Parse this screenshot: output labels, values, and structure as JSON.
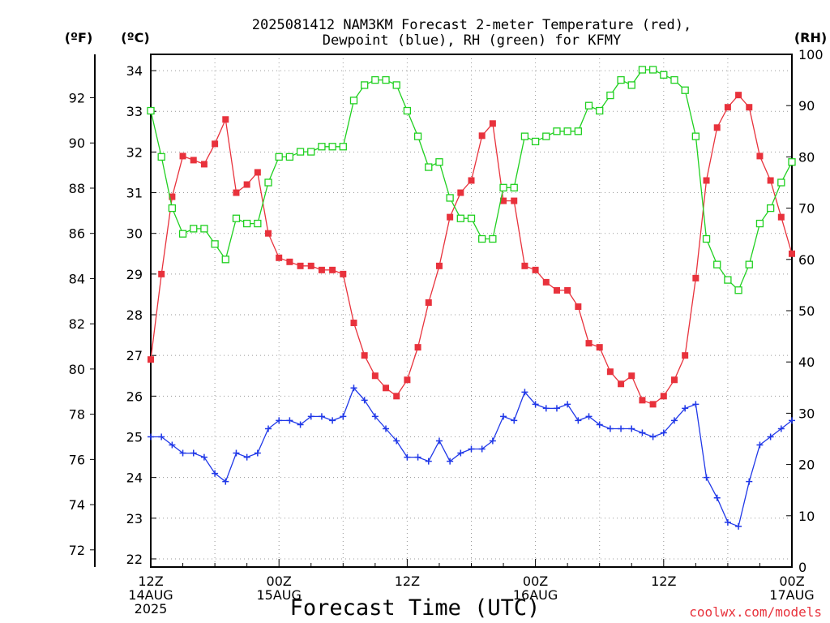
{
  "chart_data": {
    "type": "line",
    "title_line1": "2025081412 NAM3KM Forecast 2-meter Temperature (red),",
    "title_line2": "Dewpoint (blue), RH (green) for KFMY",
    "xlabel": "Forecast Time (UTC)",
    "credit": "coolwx.com/models",
    "left_unit_f": "(ºF)",
    "left_unit_c": "(ºC)",
    "right_unit": "(RH)",
    "xlim_hours": [
      0,
      60
    ],
    "ylim_c": [
      21.8,
      34.4
    ],
    "ylim_rh": [
      0,
      100
    ],
    "grid": true,
    "x_ticks": [
      {
        "hour": 0,
        "line1": "12Z",
        "line2": "14AUG",
        "line3": "2025"
      },
      {
        "hour": 12,
        "line1": "00Z",
        "line2": "15AUG",
        "line3": ""
      },
      {
        "hour": 24,
        "line1": "12Z",
        "line2": "",
        "line3": ""
      },
      {
        "hour": 36,
        "line1": "00Z",
        "line2": "16AUG",
        "line3": ""
      },
      {
        "hour": 48,
        "line1": "12Z",
        "line2": "",
        "line3": ""
      },
      {
        "hour": 60,
        "line1": "00Z",
        "line2": "17AUG",
        "line3": ""
      }
    ],
    "c_ticks": [
      "22",
      "23",
      "24",
      "25",
      "26",
      "27",
      "28",
      "29",
      "30",
      "31",
      "32",
      "33",
      "34"
    ],
    "f_ticks": [
      "72",
      "74",
      "76",
      "78",
      "80",
      "82",
      "84",
      "86",
      "88",
      "90",
      "92"
    ],
    "rh_ticks": [
      "0",
      "10",
      "20",
      "30",
      "40",
      "50",
      "60",
      "70",
      "80",
      "90",
      "100"
    ],
    "hours": [
      0,
      1,
      2,
      3,
      4,
      5,
      6,
      7,
      8,
      9,
      10,
      11,
      12,
      13,
      14,
      15,
      16,
      17,
      18,
      19,
      20,
      21,
      22,
      23,
      24,
      25,
      26,
      27,
      28,
      29,
      30,
      31,
      32,
      33,
      34,
      35,
      36,
      37,
      38,
      39,
      40,
      41,
      42,
      43,
      44,
      45,
      46,
      47,
      48,
      49,
      50,
      51,
      52,
      53,
      54,
      55,
      56,
      57,
      58,
      59,
      60
    ],
    "series": [
      {
        "name": "Temperature",
        "unit": "°C",
        "color": "#e8323c",
        "marker": "filled-square",
        "values": [
          26.9,
          29.0,
          30.9,
          31.9,
          31.8,
          31.7,
          32.2,
          32.8,
          31.0,
          31.2,
          31.5,
          30.0,
          29.4,
          29.3,
          29.2,
          29.2,
          29.1,
          29.1,
          29.0,
          27.8,
          27.0,
          26.5,
          26.2,
          26.0,
          26.4,
          27.2,
          28.3,
          29.2,
          30.4,
          31.0,
          31.3,
          32.4,
          32.7,
          30.8,
          30.8,
          29.2,
          29.1,
          28.8,
          28.6,
          28.6,
          28.2,
          27.3,
          27.2,
          26.6,
          26.3,
          26.5,
          25.9,
          25.8,
          26.0,
          26.4,
          27.0,
          28.9,
          31.3,
          32.6,
          33.1,
          33.4,
          33.1,
          31.9,
          31.3,
          30.4,
          29.5
        ]
      },
      {
        "name": "Dewpoint",
        "unit": "°C",
        "color": "#2038e8",
        "marker": "plus",
        "values": [
          25.0,
          25.0,
          24.8,
          24.6,
          24.6,
          24.5,
          24.1,
          23.9,
          24.6,
          24.5,
          24.6,
          25.2,
          25.4,
          25.4,
          25.3,
          25.5,
          25.5,
          25.4,
          25.5,
          26.2,
          25.9,
          25.5,
          25.2,
          24.9,
          24.5,
          24.5,
          24.4,
          24.9,
          24.4,
          24.6,
          24.7,
          24.7,
          24.9,
          25.5,
          25.4,
          26.1,
          25.8,
          25.7,
          25.7,
          25.8,
          25.4,
          25.5,
          25.3,
          25.2,
          25.2,
          25.2,
          25.1,
          25.0,
          25.1,
          25.4,
          25.7,
          25.8,
          24.0,
          23.5,
          22.9,
          22.8,
          23.9,
          24.8,
          25.0,
          25.2,
          25.4
        ]
      },
      {
        "name": "RH",
        "unit": "%",
        "color": "#20d020",
        "marker": "open-square",
        "values": [
          89,
          80,
          70,
          65,
          66,
          66,
          63,
          60,
          68,
          67,
          67,
          75,
          80,
          80,
          81,
          81,
          82,
          82,
          82,
          91,
          94,
          95,
          95,
          94,
          89,
          84,
          78,
          79,
          72,
          68,
          68,
          64,
          64,
          74,
          74,
          84,
          83,
          84,
          85,
          85,
          85,
          90,
          89,
          92,
          95,
          94,
          97,
          97,
          96,
          95,
          93,
          84,
          64,
          59,
          56,
          54,
          59,
          67,
          70,
          75,
          79
        ]
      }
    ]
  }
}
